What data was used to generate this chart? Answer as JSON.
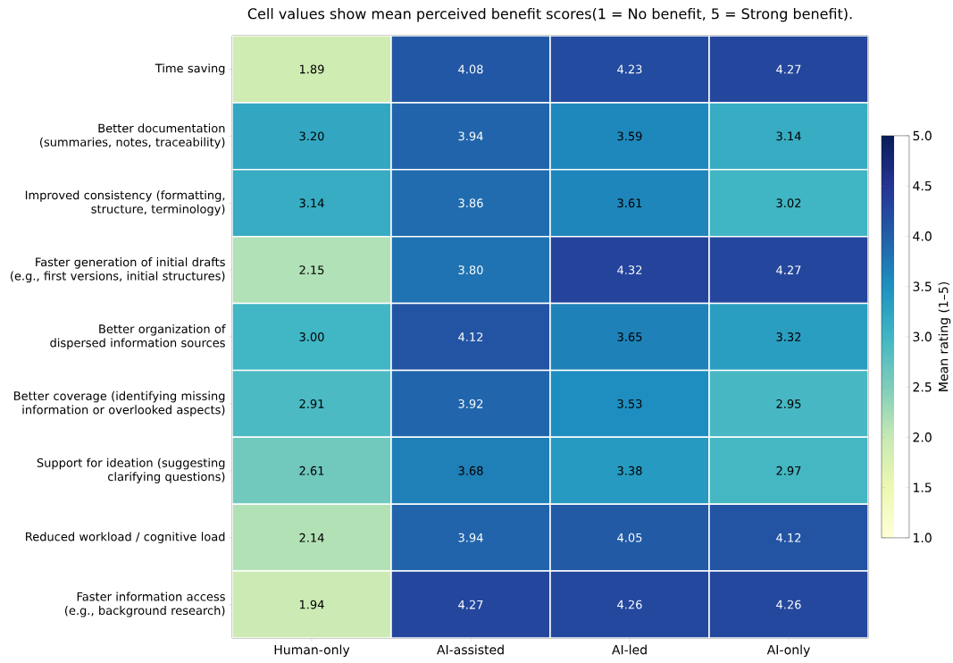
{
  "chart_data": {
    "type": "heatmap",
    "title": "Cell values show mean perceived benefit scores(1 = No benefit, 5 = Strong benefit).",
    "clabel": "Mean rating (1–5)",
    "categories": [
      "Human-only",
      "AI-assisted",
      "AI-led",
      "AI-only"
    ],
    "y_categories": [
      "Time saving",
      "Better documentation (summaries, notes, traceability)",
      "Improved consistency (formatting, structure, terminology)",
      "Faster generation of initial drafts (e.g., first versions, initial structures)",
      "Better organization of dispersed information sources",
      "Better coverage (identifying missing information or overlooked aspects)",
      "Support for ideation (suggesting clarifying questions)",
      "Reduced workload / cognitive load",
      "Faster information access (e.g., background research)"
    ],
    "cells": [
      [
        1.89,
        4.08,
        4.23,
        4.27
      ],
      [
        3.2,
        3.94,
        3.59,
        3.14
      ],
      [
        3.14,
        3.86,
        3.61,
        3.02
      ],
      [
        2.15,
        3.8,
        4.32,
        4.27
      ],
      [
        3.0,
        4.12,
        3.65,
        3.32
      ],
      [
        2.91,
        3.92,
        3.53,
        2.95
      ],
      [
        2.61,
        3.68,
        3.38,
        2.97
      ],
      [
        2.14,
        3.94,
        4.05,
        4.12
      ],
      [
        1.94,
        4.27,
        4.26,
        4.26
      ]
    ],
    "cell_labels": [
      [
        "1.89",
        "4.08",
        "4.23",
        "4.27"
      ],
      [
        "3.20",
        "3.94",
        "3.59",
        "3.14"
      ],
      [
        "3.14",
        "3.86",
        "3.61",
        "3.02"
      ],
      [
        "2.15",
        "3.80",
        "4.32",
        "4.27"
      ],
      [
        "3.00",
        "4.12",
        "3.65",
        "3.32"
      ],
      [
        "2.91",
        "3.92",
        "3.53",
        "2.95"
      ],
      [
        "2.61",
        "3.68",
        "3.38",
        "2.97"
      ],
      [
        "2.14",
        "3.94",
        "4.05",
        "4.12"
      ],
      [
        "1.94",
        "4.27",
        "4.26",
        "4.26"
      ]
    ],
    "clim": [
      1,
      5
    ],
    "cticks": [
      {
        "value": 1,
        "label": "1.0"
      },
      {
        "value": 1.5,
        "label": "1.5"
      },
      {
        "value": 2,
        "label": "2.0"
      },
      {
        "value": 2.5,
        "label": "2.5"
      },
      {
        "value": 3,
        "label": "3.0"
      },
      {
        "value": 3.5,
        "label": "3.5"
      },
      {
        "value": 4,
        "label": "4.0"
      },
      {
        "value": 4.5,
        "label": "4.5"
      },
      {
        "value": 5,
        "label": "5.0"
      }
    ]
  }
}
